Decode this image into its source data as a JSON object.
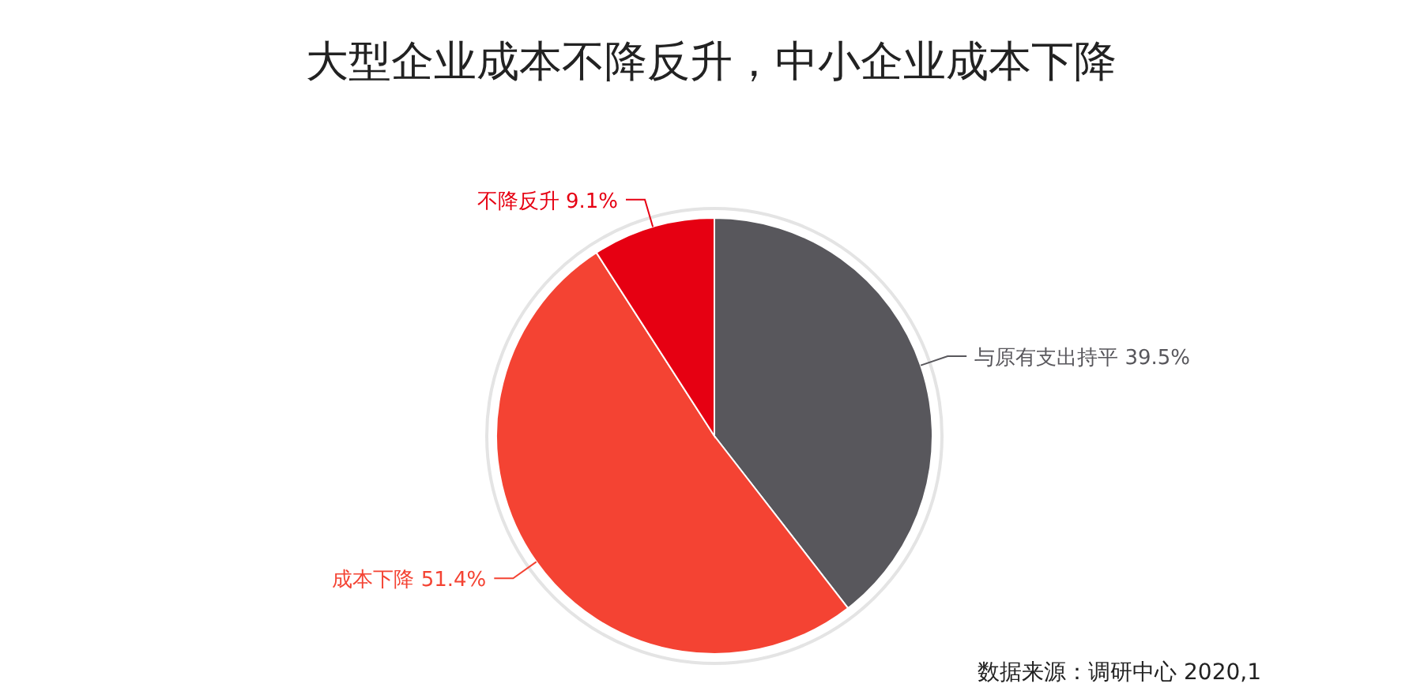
{
  "chart_data": {
    "type": "pie",
    "title": "大型企业成本不降反升，中小企业成本下降",
    "categories": [
      "与原有支出持平",
      "成本下降",
      "不降反升"
    ],
    "values": [
      39.5,
      51.4,
      9.1
    ],
    "colors": [
      "#58575c",
      "#f44333",
      "#e60012"
    ],
    "value_labels": [
      "39.5%",
      "51.4%",
      "9.1%"
    ],
    "annotations": [
      "数据来源：调研中心 2020,1"
    ]
  }
}
